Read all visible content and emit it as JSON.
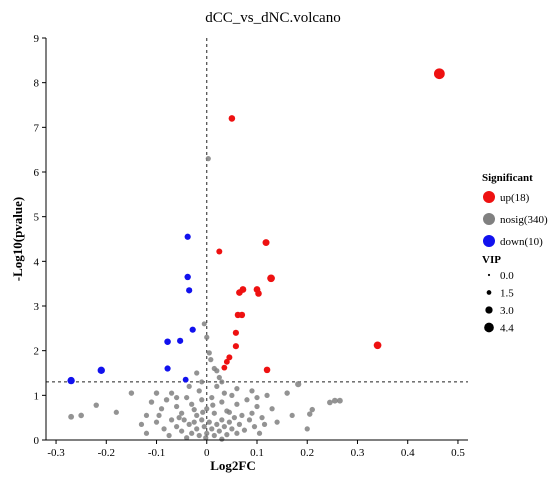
{
  "chart_data": {
    "type": "scatter",
    "title": "dCC_vs_dNC.volcano",
    "xlabel": "Log2FC",
    "ylabel": "-Log10(pvalue)",
    "xlim": [
      -0.32,
      0.52
    ],
    "ylim": [
      0,
      9
    ],
    "x_ticks": [
      "-0.3",
      "-0.2",
      "-0.1",
      "0",
      "0.1",
      "0.2",
      "0.3",
      "0.4",
      "0.5"
    ],
    "y_ticks": [
      "0",
      "1",
      "2",
      "3",
      "4",
      "5",
      "6",
      "7",
      "8",
      "9"
    ],
    "threshold_pvalue_line": 1.3,
    "vertical_reference_x": 0,
    "legend_significant": {
      "title": "Significant",
      "items": [
        {
          "label": "up(18)",
          "color": "#ee1111"
        },
        {
          "label": "nosig(340)",
          "color": "#808080"
        },
        {
          "label": "down(10)",
          "color": "#1111ee"
        }
      ]
    },
    "legend_vip": {
      "title": "VIP",
      "items": [
        {
          "label": "0.0",
          "value": 0.0
        },
        {
          "label": "1.5",
          "value": 1.5
        },
        {
          "label": "3.0",
          "value": 3.0
        },
        {
          "label": "4.4",
          "value": 4.4
        }
      ]
    },
    "series": [
      {
        "name": "up(18)",
        "color": "#ee1111",
        "points": [
          {
            "x": 0.463,
            "y": 8.2,
            "vip": 4.4
          },
          {
            "x": 0.05,
            "y": 7.2,
            "vip": 2.2
          },
          {
            "x": 0.118,
            "y": 4.42,
            "vip": 2.4
          },
          {
            "x": 0.025,
            "y": 4.22,
            "vip": 1.9
          },
          {
            "x": 0.128,
            "y": 3.62,
            "vip": 2.8
          },
          {
            "x": 0.1,
            "y": 3.37,
            "vip": 2.3
          },
          {
            "x": 0.072,
            "y": 3.37,
            "vip": 2.3
          },
          {
            "x": 0.065,
            "y": 3.3,
            "vip": 2.2
          },
          {
            "x": 0.103,
            "y": 3.28,
            "vip": 2.2
          },
          {
            "x": 0.062,
            "y": 2.8,
            "vip": 2.1
          },
          {
            "x": 0.07,
            "y": 2.8,
            "vip": 2.1
          },
          {
            "x": 0.058,
            "y": 2.4,
            "vip": 2.0
          },
          {
            "x": 0.058,
            "y": 2.1,
            "vip": 2.0
          },
          {
            "x": 0.045,
            "y": 1.85,
            "vip": 1.9
          },
          {
            "x": 0.04,
            "y": 1.75,
            "vip": 1.8
          },
          {
            "x": 0.035,
            "y": 1.62,
            "vip": 1.8
          },
          {
            "x": 0.12,
            "y": 1.57,
            "vip": 2.2
          },
          {
            "x": 0.34,
            "y": 2.12,
            "vip": 2.8
          }
        ]
      },
      {
        "name": "down(10)",
        "color": "#1111ee",
        "points": [
          {
            "x": -0.038,
            "y": 4.55,
            "vip": 2.0
          },
          {
            "x": -0.038,
            "y": 3.65,
            "vip": 2.1
          },
          {
            "x": -0.035,
            "y": 3.35,
            "vip": 2.0
          },
          {
            "x": -0.028,
            "y": 2.47,
            "vip": 2.0
          },
          {
            "x": -0.053,
            "y": 2.22,
            "vip": 2.0
          },
          {
            "x": -0.078,
            "y": 2.2,
            "vip": 2.2
          },
          {
            "x": -0.078,
            "y": 1.6,
            "vip": 2.0
          },
          {
            "x": -0.042,
            "y": 1.35,
            "vip": 1.8
          },
          {
            "x": -0.21,
            "y": 1.56,
            "vip": 2.6
          },
          {
            "x": -0.27,
            "y": 1.33,
            "vip": 2.6
          }
        ]
      },
      {
        "name": "nosig(340)",
        "color": "#808080",
        "points": [
          {
            "x": 0.003,
            "y": 6.3,
            "vip": 1.5
          },
          {
            "x": -0.005,
            "y": 2.6,
            "vip": 1.4
          },
          {
            "x": 0.0,
            "y": 2.3,
            "vip": 1.5
          },
          {
            "x": 0.005,
            "y": 1.95,
            "vip": 1.5
          },
          {
            "x": 0.008,
            "y": 1.8,
            "vip": 1.5
          },
          {
            "x": 0.015,
            "y": 1.6,
            "vip": 1.5
          },
          {
            "x": 0.02,
            "y": 1.55,
            "vip": 1.5
          },
          {
            "x": -0.02,
            "y": 1.5,
            "vip": 1.5
          },
          {
            "x": 0.025,
            "y": 1.4,
            "vip": 1.5
          },
          {
            "x": 0.03,
            "y": 1.3,
            "vip": 1.4
          },
          {
            "x": -0.01,
            "y": 1.3,
            "vip": 1.4
          },
          {
            "x": 0.182,
            "y": 1.25,
            "vip": 2.0
          },
          {
            "x": -0.15,
            "y": 1.05,
            "vip": 1.6
          },
          {
            "x": 0.16,
            "y": 1.05,
            "vip": 1.6
          },
          {
            "x": 0.09,
            "y": 1.1,
            "vip": 1.5
          },
          {
            "x": 0.06,
            "y": 1.15,
            "vip": 1.5
          },
          {
            "x": -0.1,
            "y": 1.05,
            "vip": 1.6
          },
          {
            "x": -0.07,
            "y": 1.05,
            "vip": 1.5
          },
          {
            "x": 0.12,
            "y": 1.0,
            "vip": 1.5
          },
          {
            "x": 0.265,
            "y": 0.88,
            "vip": 1.8
          },
          {
            "x": 0.255,
            "y": 0.88,
            "vip": 1.8
          },
          {
            "x": 0.245,
            "y": 0.84,
            "vip": 1.7
          },
          {
            "x": 0.21,
            "y": 0.68,
            "vip": 1.6
          },
          {
            "x": 0.205,
            "y": 0.58,
            "vip": 1.6
          },
          {
            "x": 0.17,
            "y": 0.55,
            "vip": 1.5
          },
          {
            "x": 0.2,
            "y": 0.25,
            "vip": 1.5
          },
          {
            "x": -0.27,
            "y": 0.52,
            "vip": 1.8
          },
          {
            "x": -0.25,
            "y": 0.55,
            "vip": 1.7
          },
          {
            "x": -0.22,
            "y": 0.78,
            "vip": 1.6
          },
          {
            "x": -0.18,
            "y": 0.62,
            "vip": 1.5
          },
          {
            "x": -0.12,
            "y": 0.55,
            "vip": 1.5
          },
          {
            "x": -0.11,
            "y": 0.85,
            "vip": 1.6
          },
          {
            "x": -0.09,
            "y": 0.7,
            "vip": 1.5
          },
          {
            "x": -0.08,
            "y": 0.9,
            "vip": 1.6
          },
          {
            "x": -0.06,
            "y": 0.75,
            "vip": 1.5
          },
          {
            "x": -0.05,
            "y": 0.6,
            "vip": 1.5
          },
          {
            "x": -0.04,
            "y": 0.95,
            "vip": 1.5
          },
          {
            "x": -0.03,
            "y": 0.8,
            "vip": 1.5
          },
          {
            "x": -0.02,
            "y": 0.55,
            "vip": 1.5
          },
          {
            "x": -0.015,
            "y": 1.1,
            "vip": 1.5
          },
          {
            "x": -0.01,
            "y": 0.9,
            "vip": 1.5
          },
          {
            "x": 0.0,
            "y": 0.7,
            "vip": 1.5
          },
          {
            "x": 0.01,
            "y": 0.95,
            "vip": 1.5
          },
          {
            "x": 0.015,
            "y": 0.6,
            "vip": 1.5
          },
          {
            "x": 0.02,
            "y": 1.2,
            "vip": 1.5
          },
          {
            "x": 0.03,
            "y": 0.85,
            "vip": 1.5
          },
          {
            "x": 0.04,
            "y": 0.65,
            "vip": 1.5
          },
          {
            "x": 0.05,
            "y": 1.0,
            "vip": 1.5
          },
          {
            "x": 0.06,
            "y": 0.8,
            "vip": 1.5
          },
          {
            "x": 0.07,
            "y": 0.55,
            "vip": 1.5
          },
          {
            "x": 0.08,
            "y": 0.9,
            "vip": 1.5
          },
          {
            "x": 0.1,
            "y": 0.75,
            "vip": 1.5
          },
          {
            "x": 0.11,
            "y": 0.5,
            "vip": 1.5
          },
          {
            "x": 0.13,
            "y": 0.7,
            "vip": 1.5
          },
          {
            "x": 0.14,
            "y": 0.4,
            "vip": 1.5
          },
          {
            "x": -0.13,
            "y": 0.35,
            "vip": 1.5
          },
          {
            "x": -0.1,
            "y": 0.4,
            "vip": 1.5
          },
          {
            "x": -0.085,
            "y": 0.25,
            "vip": 1.5
          },
          {
            "x": -0.07,
            "y": 0.45,
            "vip": 1.5
          },
          {
            "x": -0.06,
            "y": 0.3,
            "vip": 1.5
          },
          {
            "x": -0.05,
            "y": 0.2,
            "vip": 1.5
          },
          {
            "x": -0.045,
            "y": 0.45,
            "vip": 1.5
          },
          {
            "x": -0.035,
            "y": 0.35,
            "vip": 1.5
          },
          {
            "x": -0.03,
            "y": 0.15,
            "vip": 1.5
          },
          {
            "x": -0.025,
            "y": 0.4,
            "vip": 1.5
          },
          {
            "x": -0.02,
            "y": 0.25,
            "vip": 1.5
          },
          {
            "x": -0.015,
            "y": 0.1,
            "vip": 1.5
          },
          {
            "x": -0.01,
            "y": 0.45,
            "vip": 1.5
          },
          {
            "x": -0.005,
            "y": 0.3,
            "vip": 1.5
          },
          {
            "x": 0.0,
            "y": 0.15,
            "vip": 1.5
          },
          {
            "x": 0.005,
            "y": 0.4,
            "vip": 1.5
          },
          {
            "x": 0.01,
            "y": 0.25,
            "vip": 1.5
          },
          {
            "x": 0.015,
            "y": 0.1,
            "vip": 1.5
          },
          {
            "x": 0.02,
            "y": 0.35,
            "vip": 1.5
          },
          {
            "x": 0.025,
            "y": 0.2,
            "vip": 1.5
          },
          {
            "x": 0.03,
            "y": 0.45,
            "vip": 1.5
          },
          {
            "x": 0.035,
            "y": 0.3,
            "vip": 1.5
          },
          {
            "x": 0.04,
            "y": 0.12,
            "vip": 1.5
          },
          {
            "x": 0.045,
            "y": 0.4,
            "vip": 1.5
          },
          {
            "x": 0.05,
            "y": 0.25,
            "vip": 1.5
          },
          {
            "x": 0.055,
            "y": 0.5,
            "vip": 1.5
          },
          {
            "x": 0.06,
            "y": 0.15,
            "vip": 1.5
          },
          {
            "x": 0.065,
            "y": 0.35,
            "vip": 1.5
          },
          {
            "x": 0.075,
            "y": 0.22,
            "vip": 1.5
          },
          {
            "x": 0.085,
            "y": 0.45,
            "vip": 1.5
          },
          {
            "x": 0.095,
            "y": 0.3,
            "vip": 1.5
          },
          {
            "x": 0.105,
            "y": 0.15,
            "vip": 1.5
          },
          {
            "x": 0.115,
            "y": 0.35,
            "vip": 1.5
          },
          {
            "x": -0.12,
            "y": 0.15,
            "vip": 1.5
          },
          {
            "x": -0.095,
            "y": 0.55,
            "vip": 1.5
          },
          {
            "x": -0.075,
            "y": 0.1,
            "vip": 1.5
          },
          {
            "x": -0.055,
            "y": 0.5,
            "vip": 1.5
          },
          {
            "x": -0.04,
            "y": 0.05,
            "vip": 1.5
          },
          {
            "x": -0.002,
            "y": 0.05,
            "vip": 1.5
          },
          {
            "x": 0.03,
            "y": 0.02,
            "vip": 1.5
          },
          {
            "x": 0.045,
            "y": 0.62,
            "vip": 1.5
          },
          {
            "x": -0.008,
            "y": 0.62,
            "vip": 1.5
          },
          {
            "x": 0.012,
            "y": 0.78,
            "vip": 1.5
          },
          {
            "x": -0.025,
            "y": 0.68,
            "vip": 1.5
          },
          {
            "x": 0.09,
            "y": 0.6,
            "vip": 1.5
          },
          {
            "x": 0.1,
            "y": 0.95,
            "vip": 1.5
          },
          {
            "x": -0.06,
            "y": 0.95,
            "vip": 1.5
          },
          {
            "x": 0.035,
            "y": 1.05,
            "vip": 1.5
          },
          {
            "x": -0.035,
            "y": 1.2,
            "vip": 1.5
          }
        ]
      }
    ]
  }
}
